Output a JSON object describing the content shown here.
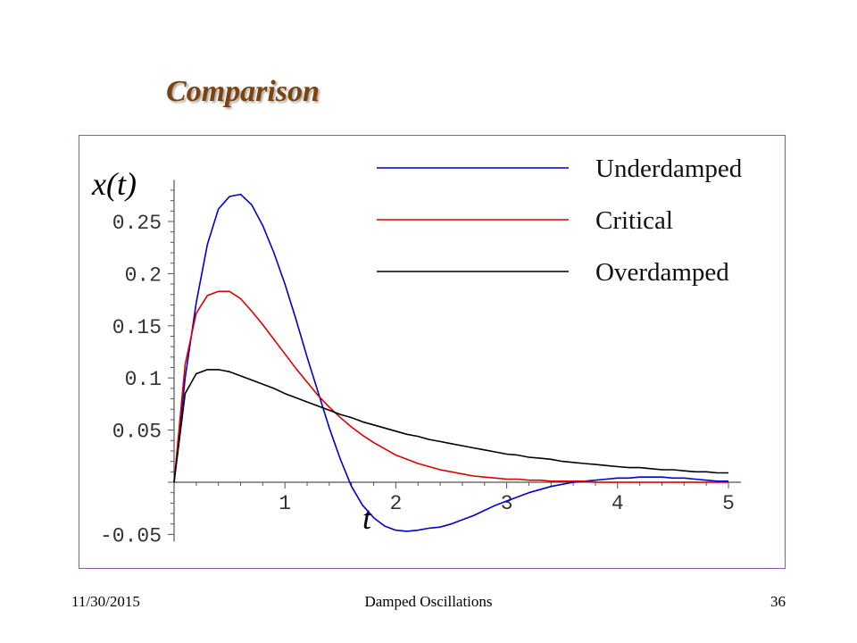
{
  "slide": {
    "title": "Comparison",
    "footer_date": "11/30/2015",
    "footer_title": "Damped Oscillations",
    "page_number": "36"
  },
  "chart_data": {
    "type": "line",
    "ylabel": "x(t)",
    "xlabel": "t",
    "xlim": [
      0,
      5
    ],
    "ylim": [
      -0.05,
      0.29
    ],
    "x_ticks": [
      "1",
      "2",
      "3",
      "4",
      "5"
    ],
    "y_ticks": [
      "-0.05",
      "0.05",
      "0.1",
      "0.15",
      "0.2",
      "0.25"
    ],
    "legend_position": "top-right",
    "x": [
      0,
      0.1,
      0.2,
      0.3,
      0.4,
      0.5,
      0.6,
      0.7,
      0.8,
      0.9,
      1.0,
      1.1,
      1.2,
      1.3,
      1.4,
      1.5,
      1.6,
      1.7,
      1.8,
      1.9,
      2.0,
      2.1,
      2.2,
      2.3,
      2.4,
      2.5,
      2.6,
      2.7,
      2.8,
      2.9,
      3.0,
      3.1,
      3.2,
      3.3,
      3.4,
      3.5,
      3.6,
      3.7,
      3.8,
      3.9,
      4.0,
      4.1,
      4.2,
      4.3,
      4.4,
      4.5,
      4.6,
      4.7,
      4.8,
      4.9,
      5.0
    ],
    "series": [
      {
        "name": "Underdamped",
        "color": "#0000cc",
        "values": [
          0,
          0.1,
          0.172,
          0.228,
          0.262,
          0.274,
          0.276,
          0.266,
          0.246,
          0.22,
          0.19,
          0.156,
          0.12,
          0.086,
          0.052,
          0.022,
          -0.004,
          -0.022,
          -0.034,
          -0.042,
          -0.046,
          -0.047,
          -0.046,
          -0.044,
          -0.043,
          -0.04,
          -0.036,
          -0.032,
          -0.027,
          -0.022,
          -0.018,
          -0.014,
          -0.01,
          -0.007,
          -0.004,
          -0.002,
          0,
          0.001,
          0.002,
          0.003,
          0.004,
          0.004,
          0.005,
          0.005,
          0.005,
          0.004,
          0.004,
          0.003,
          0.002,
          0.001,
          0.001
        ]
      },
      {
        "name": "Critical",
        "color": "#dd0000",
        "values": [
          0,
          0.113,
          0.162,
          0.179,
          0.183,
          0.183,
          0.176,
          0.164,
          0.151,
          0.137,
          0.123,
          0.109,
          0.096,
          0.083,
          0.072,
          0.062,
          0.053,
          0.045,
          0.038,
          0.032,
          0.026,
          0.022,
          0.018,
          0.015,
          0.012,
          0.01,
          0.008,
          0.006,
          0.005,
          0.004,
          0.003,
          0.003,
          0.002,
          0.002,
          0.001,
          0.001,
          0.001,
          0.001,
          0,
          0,
          0,
          0,
          0,
          0,
          0,
          0,
          0,
          0,
          0,
          0,
          0
        ]
      },
      {
        "name": "Overdamped",
        "color": "#000000",
        "values": [
          0,
          0.085,
          0.104,
          0.108,
          0.108,
          0.106,
          0.102,
          0.098,
          0.094,
          0.09,
          0.085,
          0.081,
          0.077,
          0.073,
          0.069,
          0.065,
          0.062,
          0.058,
          0.055,
          0.052,
          0.049,
          0.046,
          0.044,
          0.041,
          0.039,
          0.037,
          0.035,
          0.033,
          0.031,
          0.029,
          0.027,
          0.026,
          0.024,
          0.023,
          0.022,
          0.02,
          0.019,
          0.018,
          0.017,
          0.016,
          0.015,
          0.014,
          0.014,
          0.013,
          0.012,
          0.012,
          0.011,
          0.01,
          0.01,
          0.009,
          0.009
        ]
      }
    ]
  }
}
